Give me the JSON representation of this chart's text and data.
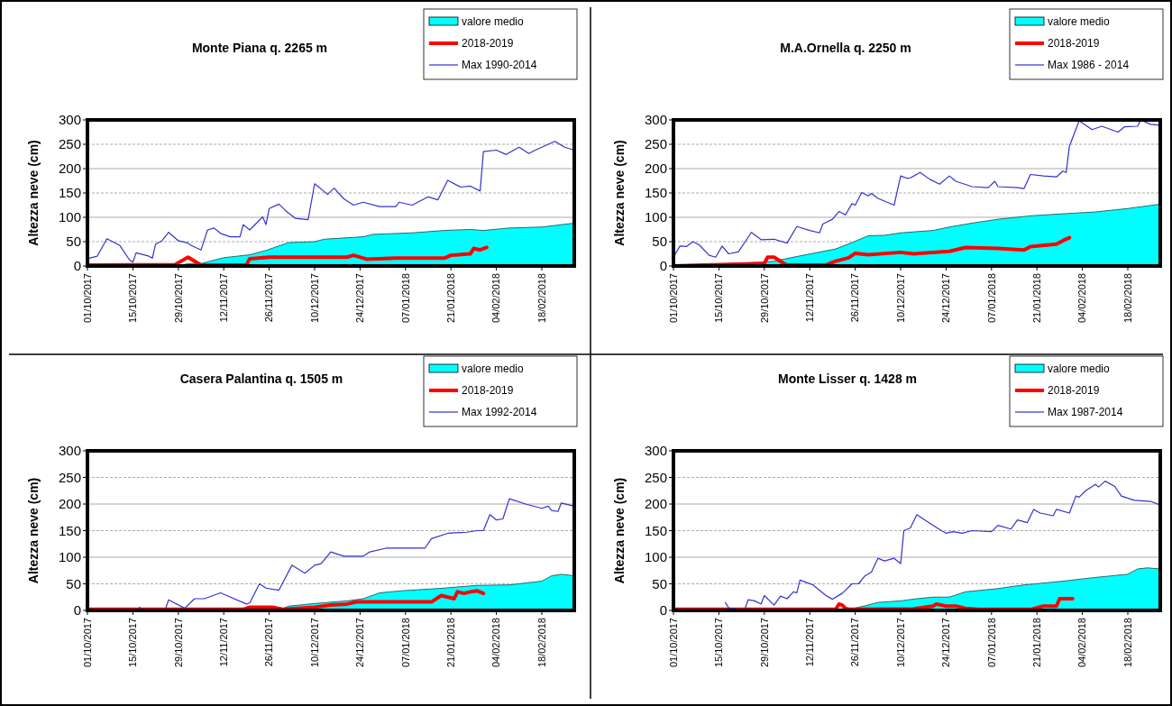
{
  "chart_data": [
    {
      "type": "line",
      "title": "Monte Piana q. 2265 m",
      "ylabel": "Altezza neve (cm)",
      "xlim": [
        "2017-10-01",
        "2018-02-28"
      ],
      "ylim": [
        0,
        300
      ],
      "yticks": [
        0,
        50,
        100,
        150,
        200,
        250,
        300
      ],
      "xticks": [
        {
          "value": "2017-10-01",
          "label": "01/10/2017"
        },
        {
          "value": "2017-10-15",
          "label": "15/10/2017"
        },
        {
          "value": "2017-10-29",
          "label": "29/10/2017"
        },
        {
          "value": "2017-11-12",
          "label": "12/11/2017"
        },
        {
          "value": "2017-11-26",
          "label": "26/11/2017"
        },
        {
          "value": "2017-12-10",
          "label": "10/12/2017"
        },
        {
          "value": "2017-12-24",
          "label": "24/12/2017"
        },
        {
          "value": "2018-01-07",
          "label": "07/01/2018"
        },
        {
          "value": "2018-01-21",
          "label": "21/01/2018"
        },
        {
          "value": "2018-02-04",
          "label": "04/02/2018"
        },
        {
          "value": "2018-02-18",
          "label": "18/02/2018"
        }
      ],
      "grid": "y",
      "legend": "top right",
      "marker": "none",
      "line_style": "solid",
      "series": [
        {
          "name": "valore medio",
          "type": "area",
          "color": "#00ffff",
          "x": [
            "2017-10-01",
            "2017-10-29",
            "2017-11-01",
            "2017-11-05",
            "2017-11-12",
            "2017-11-20",
            "2017-11-25",
            "2017-12-02",
            "2017-12-10",
            "2017-12-13",
            "2017-12-25",
            "2017-12-28",
            "2018-01-09",
            "2018-01-19",
            "2018-01-27",
            "2018-01-31",
            "2018-02-08",
            "2018-02-18",
            "2018-02-28"
          ],
          "values": [
            0,
            0,
            5,
            5,
            17,
            23,
            32,
            48,
            50,
            55,
            60,
            65,
            68,
            73,
            75,
            73,
            78,
            80,
            88
          ]
        },
        {
          "name": "2018-2019",
          "type": "line",
          "color": "#ff0000",
          "x": [
            "2017-10-01",
            "2017-10-28",
            "2017-11-01",
            "2017-11-05",
            "2017-11-19",
            "2017-11-20",
            "2017-11-26",
            "2017-12-20",
            "2017-12-22",
            "2017-12-26",
            "2018-01-04",
            "2018-01-19",
            "2018-01-21",
            "2018-01-27",
            "2018-01-28",
            "2018-01-30",
            "2018-02-01"
          ],
          "values": [
            2,
            3,
            18,
            2,
            2,
            15,
            18,
            18,
            22,
            14,
            16,
            16,
            22,
            25,
            36,
            33,
            38
          ]
        },
        {
          "name": "Max 1990-2014",
          "type": "line",
          "color": "#3333cc",
          "x": [
            "2017-10-01",
            "2017-10-04",
            "2017-10-07",
            "2017-10-11",
            "2017-10-14",
            "2017-10-15",
            "2017-10-16",
            "2017-10-20",
            "2017-10-21",
            "2017-10-22",
            "2017-10-24",
            "2017-10-26",
            "2017-10-29",
            "2017-11-01",
            "2017-11-02",
            "2017-11-05",
            "2017-11-07",
            "2017-11-09",
            "2017-11-11",
            "2017-11-14",
            "2017-11-17",
            "2017-11-18",
            "2017-11-20",
            "2017-11-24",
            "2017-11-25",
            "2017-11-26",
            "2017-11-29",
            "2017-12-01",
            "2017-12-04",
            "2017-12-08",
            "2017-12-10",
            "2017-12-14",
            "2017-12-16",
            "2017-12-19",
            "2017-12-22",
            "2017-12-25",
            "2017-12-30",
            "2018-01-04",
            "2018-01-05",
            "2018-01-09",
            "2018-01-14",
            "2018-01-17",
            "2018-01-20",
            "2018-01-24",
            "2018-01-27",
            "2018-01-30",
            "2018-01-31",
            "2018-02-04",
            "2018-02-07",
            "2018-02-11",
            "2018-02-14",
            "2018-02-16",
            "2018-02-22",
            "2018-02-25",
            "2018-02-28"
          ],
          "values": [
            15,
            20,
            56,
            42,
            12,
            8,
            27,
            20,
            16,
            45,
            52,
            69,
            52,
            47,
            42,
            33,
            74,
            78,
            67,
            60,
            60,
            85,
            74,
            101,
            85,
            118,
            127,
            114,
            98,
            95,
            169,
            147,
            160,
            138,
            125,
            131,
            122,
            122,
            131,
            125,
            142,
            136,
            176,
            162,
            164,
            154,
            235,
            238,
            229,
            244,
            231,
            238,
            256,
            244,
            238
          ]
        }
      ]
    },
    {
      "type": "line",
      "title": "M.A.Ornella q. 2250 m",
      "ylabel": "Altezza neve (cm)",
      "xlim": [
        "2017-10-01",
        "2018-02-28"
      ],
      "ylim": [
        0,
        300
      ],
      "yticks": [
        0,
        50,
        100,
        150,
        200,
        250,
        300
      ],
      "xticks": [
        {
          "value": "2017-10-01",
          "label": "01/10/2017"
        },
        {
          "value": "2017-10-15",
          "label": "15/10/2017"
        },
        {
          "value": "2017-10-29",
          "label": "29/10/2017"
        },
        {
          "value": "2017-11-12",
          "label": "12/11/2017"
        },
        {
          "value": "2017-11-26",
          "label": "26/11/2017"
        },
        {
          "value": "2017-12-10",
          "label": "10/12/2017"
        },
        {
          "value": "2017-12-24",
          "label": "24/12/2017"
        },
        {
          "value": "2018-01-07",
          "label": "07/01/2018"
        },
        {
          "value": "2018-01-21",
          "label": "21/01/2018"
        },
        {
          "value": "2018-02-04",
          "label": "04/02/2018"
        },
        {
          "value": "2018-02-18",
          "label": "18/02/2018"
        }
      ],
      "grid": "y",
      "legend": "top right",
      "marker": "none",
      "line_style": "solid",
      "series": [
        {
          "name": "valore medio",
          "type": "area",
          "color": "#00ffff",
          "x": [
            "2017-10-01",
            "2017-10-29",
            "2017-11-01",
            "2017-11-10",
            "2017-11-20",
            "2017-11-25",
            "2017-11-30",
            "2017-12-05",
            "2017-12-10",
            "2017-12-20",
            "2017-12-25",
            "2018-01-01",
            "2018-01-09",
            "2018-01-19",
            "2018-01-31",
            "2018-02-08",
            "2018-02-18",
            "2018-02-28"
          ],
          "values": [
            0,
            8,
            10,
            22,
            35,
            48,
            62,
            63,
            68,
            73,
            80,
            88,
            96,
            103,
            108,
            111,
            118,
            127
          ]
        },
        {
          "name": "2018-2019",
          "type": "line",
          "color": "#ff0000",
          "x": [
            "2017-10-01",
            "2017-10-29",
            "2017-10-30",
            "2017-11-01",
            "2017-11-04",
            "2017-11-05",
            "2017-11-17",
            "2017-11-20",
            "2017-11-24",
            "2017-11-26",
            "2017-11-30",
            "2017-12-10",
            "2017-12-14",
            "2017-12-25",
            "2017-12-30",
            "2018-01-09",
            "2018-01-17",
            "2018-01-19",
            "2018-01-27",
            "2018-01-29",
            "2018-01-31"
          ],
          "values": [
            0,
            5,
            18,
            18,
            5,
            2,
            2,
            10,
            17,
            26,
            23,
            28,
            25,
            30,
            38,
            36,
            33,
            40,
            45,
            52,
            58
          ]
        },
        {
          "name": "Max 1986 - 2014",
          "type": "line",
          "color": "#3333cc",
          "x": [
            "2017-10-01",
            "2017-10-03",
            "2017-10-05",
            "2017-10-07",
            "2017-10-09",
            "2017-10-12",
            "2017-10-14",
            "2017-10-16",
            "2017-10-18",
            "2017-10-21",
            "2017-10-25",
            "2017-10-28",
            "2017-11-01",
            "2017-11-05",
            "2017-11-08",
            "2017-11-12",
            "2017-11-15",
            "2017-11-16",
            "2017-11-19",
            "2017-11-21",
            "2017-11-23",
            "2017-11-25",
            "2017-11-26",
            "2017-11-28",
            "2017-11-30",
            "2017-12-01",
            "2017-12-03",
            "2017-12-08",
            "2017-12-10",
            "2017-12-12",
            "2017-12-13",
            "2017-12-16",
            "2017-12-19",
            "2017-12-22",
            "2017-12-25",
            "2017-12-27",
            "2018-01-01",
            "2018-01-06",
            "2018-01-08",
            "2018-01-09",
            "2018-01-15",
            "2018-01-17",
            "2018-01-19",
            "2018-01-23",
            "2018-01-27",
            "2018-01-29",
            "2018-01-30",
            "2018-01-31",
            "2018-02-03",
            "2018-02-07",
            "2018-02-10",
            "2018-02-15",
            "2018-02-17",
            "2018-02-21",
            "2018-02-22",
            "2018-02-25",
            "2018-02-28"
          ],
          "values": [
            18,
            41,
            40,
            50,
            43,
            22,
            18,
            41,
            25,
            29,
            69,
            54,
            55,
            47,
            81,
            73,
            68,
            86,
            96,
            112,
            105,
            128,
            125,
            151,
            144,
            149,
            139,
            125,
            185,
            180,
            181,
            192,
            178,
            168,
            185,
            174,
            163,
            161,
            174,
            163,
            161,
            159,
            188,
            185,
            183,
            195,
            192,
            246,
            298,
            280,
            287,
            275,
            286,
            287,
            300,
            291,
            289
          ]
        }
      ]
    },
    {
      "type": "line",
      "title": "Casera Palantina q. 1505 m",
      "ylabel": "Altezza neve (cm)",
      "xlim": [
        "2017-10-01",
        "2018-02-28"
      ],
      "ylim": [
        0,
        300
      ],
      "yticks": [
        0,
        50,
        100,
        150,
        200,
        250,
        300
      ],
      "xticks": [
        {
          "value": "2017-10-01",
          "label": "01/10/2017"
        },
        {
          "value": "2017-10-15",
          "label": "15/10/2017"
        },
        {
          "value": "2017-10-29",
          "label": "29/10/2017"
        },
        {
          "value": "2017-11-12",
          "label": "12/11/2017"
        },
        {
          "value": "2017-11-26",
          "label": "26/11/2017"
        },
        {
          "value": "2017-12-10",
          "label": "10/12/2017"
        },
        {
          "value": "2017-12-24",
          "label": "24/12/2017"
        },
        {
          "value": "2018-01-07",
          "label": "07/01/2018"
        },
        {
          "value": "2018-01-21",
          "label": "21/01/2018"
        },
        {
          "value": "2018-02-04",
          "label": "04/02/2018"
        },
        {
          "value": "2018-02-18",
          "label": "18/02/2018"
        }
      ],
      "grid": "y",
      "legend": "top right",
      "marker": "none",
      "line_style": "solid",
      "series": [
        {
          "name": "valore medio",
          "type": "area",
          "color": "#00ffff",
          "x": [
            "2017-10-01",
            "2017-11-30",
            "2017-12-02",
            "2017-12-10",
            "2017-12-20",
            "2017-12-25",
            "2017-12-30",
            "2018-01-06",
            "2018-01-19",
            "2018-01-29",
            "2018-02-08",
            "2018-02-18",
            "2018-02-21",
            "2018-02-24",
            "2018-02-28"
          ],
          "values": [
            0,
            3,
            8,
            13,
            18,
            22,
            33,
            37,
            42,
            47,
            48,
            55,
            65,
            68,
            65
          ]
        },
        {
          "name": "2018-2019",
          "type": "line",
          "color": "#ff0000",
          "x": [
            "2017-10-01",
            "2017-11-18",
            "2017-11-20",
            "2017-11-27",
            "2017-11-30",
            "2017-12-10",
            "2017-12-15",
            "2017-12-20",
            "2017-12-23",
            "2018-01-15",
            "2018-01-18",
            "2018-01-20",
            "2018-01-22",
            "2018-01-23",
            "2018-01-25",
            "2018-01-27",
            "2018-01-29",
            "2018-01-31"
          ],
          "values": [
            2,
            2,
            6,
            6,
            2,
            6,
            10,
            12,
            16,
            16,
            28,
            25,
            22,
            35,
            32,
            35,
            37,
            32
          ]
        },
        {
          "name": "Max 1992-2014",
          "type": "line",
          "color": "#3333cc",
          "x": [
            "2017-10-17",
            "2017-10-18",
            "2017-10-25",
            "2017-10-26",
            "2017-10-31",
            "2017-11-03",
            "2017-11-06",
            "2017-11-11",
            "2017-11-19",
            "2017-11-20",
            "2017-11-23",
            "2017-11-25",
            "2017-11-29",
            "2017-12-03",
            "2017-12-07",
            "2017-12-10",
            "2017-12-12",
            "2017-12-15",
            "2017-12-19",
            "2017-12-25",
            "2017-12-27",
            "2018-01-01",
            "2018-01-13",
            "2018-01-15",
            "2018-01-20",
            "2018-01-26",
            "2018-01-29",
            "2018-01-31",
            "2018-02-02",
            "2018-02-04",
            "2018-02-06",
            "2018-02-08",
            "2018-02-13",
            "2018-02-18",
            "2018-02-20",
            "2018-02-21",
            "2018-02-23",
            "2018-02-24",
            "2018-02-28"
          ],
          "values": [
            6,
            2,
            2,
            20,
            4,
            22,
            22,
            33,
            12,
            14,
            50,
            42,
            38,
            85,
            70,
            85,
            88,
            110,
            102,
            102,
            110,
            117,
            117,
            135,
            145,
            147,
            150,
            150,
            180,
            170,
            172,
            210,
            200,
            192,
            196,
            188,
            186,
            202,
            196
          ]
        }
      ]
    },
    {
      "type": "line",
      "title": "Monte Lisser q. 1428 m",
      "ylabel": "Altezza neve (cm)",
      "xlim": [
        "2017-10-01",
        "2018-02-28"
      ],
      "ylim": [
        0,
        300
      ],
      "yticks": [
        0,
        50,
        100,
        150,
        200,
        250,
        300
      ],
      "xticks": [
        {
          "value": "2017-10-01",
          "label": "01/10/2017"
        },
        {
          "value": "2017-10-15",
          "label": "15/10/2017"
        },
        {
          "value": "2017-10-29",
          "label": "29/10/2017"
        },
        {
          "value": "2017-11-12",
          "label": "12/11/2017"
        },
        {
          "value": "2017-11-26",
          "label": "26/11/2017"
        },
        {
          "value": "2017-12-10",
          "label": "10/12/2017"
        },
        {
          "value": "2017-12-24",
          "label": "24/12/2017"
        },
        {
          "value": "2018-01-07",
          "label": "07/01/2018"
        },
        {
          "value": "2018-01-21",
          "label": "21/01/2018"
        },
        {
          "value": "2018-02-04",
          "label": "04/02/2018"
        },
        {
          "value": "2018-02-18",
          "label": "18/02/2018"
        }
      ],
      "grid": "y",
      "legend": "top right",
      "marker": "none",
      "line_style": "solid",
      "series": [
        {
          "name": "valore medio",
          "type": "area",
          "color": "#00ffff",
          "x": [
            "2017-10-01",
            "2017-11-25",
            "2017-11-30",
            "2017-12-03",
            "2017-12-10",
            "2017-12-15",
            "2017-12-20",
            "2017-12-25",
            "2017-12-30",
            "2018-01-04",
            "2018-01-09",
            "2018-01-17",
            "2018-01-24",
            "2018-01-29",
            "2018-02-08",
            "2018-02-18",
            "2018-02-21",
            "2018-02-24",
            "2018-02-28"
          ],
          "values": [
            0,
            3,
            10,
            15,
            18,
            22,
            25,
            25,
            35,
            38,
            41,
            48,
            52,
            55,
            62,
            68,
            78,
            80,
            78
          ]
        },
        {
          "name": "2018-2019",
          "type": "line",
          "color": "#ff0000",
          "x": [
            "2017-10-01",
            "2017-11-20",
            "2017-11-21",
            "2017-11-22",
            "2017-11-23",
            "2017-11-24",
            "2017-12-14",
            "2017-12-20",
            "2017-12-21",
            "2017-12-24",
            "2017-12-27",
            "2017-12-30",
            "2018-01-03",
            "2018-01-19",
            "2018-01-23",
            "2018-01-27",
            "2018-01-28",
            "2018-02-01"
          ],
          "values": [
            2,
            2,
            12,
            10,
            4,
            2,
            3,
            8,
            12,
            8,
            8,
            4,
            2,
            2,
            8,
            8,
            22,
            22
          ]
        },
        {
          "name": "Max 1987-2014",
          "type": "line",
          "color": "#3333cc",
          "x": [
            "2017-10-17",
            "2017-10-18",
            "2017-10-21",
            "2017-10-23",
            "2017-10-24",
            "2017-10-26",
            "2017-10-28",
            "2017-10-29",
            "2017-11-01",
            "2017-11-03",
            "2017-11-05",
            "2017-11-07",
            "2017-11-08",
            "2017-11-09",
            "2017-11-13",
            "2017-11-17",
            "2017-11-19",
            "2017-11-22",
            "2017-11-25",
            "2017-11-27",
            "2017-11-29",
            "2017-12-01",
            "2017-12-03",
            "2017-12-05",
            "2017-12-08",
            "2017-12-10",
            "2017-12-11",
            "2017-12-13",
            "2017-12-15",
            "2017-12-18",
            "2017-12-22",
            "2017-12-24",
            "2017-12-26",
            "2017-12-29",
            "2018-01-01",
            "2018-01-07",
            "2018-01-09",
            "2018-01-13",
            "2018-01-15",
            "2018-01-18",
            "2018-01-20",
            "2018-01-22",
            "2018-01-26",
            "2018-01-27",
            "2018-01-31",
            "2018-02-02",
            "2018-02-03",
            "2018-02-05",
            "2018-02-08",
            "2018-02-09",
            "2018-02-11",
            "2018-02-14",
            "2018-02-16",
            "2018-02-20",
            "2018-02-25",
            "2018-02-28"
          ],
          "values": [
            15,
            5,
            2,
            2,
            20,
            18,
            12,
            28,
            10,
            27,
            22,
            35,
            33,
            57,
            48,
            28,
            21,
            32,
            50,
            50,
            65,
            72,
            98,
            93,
            98,
            88,
            150,
            155,
            180,
            168,
            152,
            145,
            148,
            145,
            150,
            148,
            160,
            153,
            170,
            165,
            190,
            183,
            178,
            190,
            183,
            215,
            213,
            225,
            237,
            232,
            243,
            233,
            215,
            207,
            205,
            198
          ]
        }
      ]
    }
  ]
}
